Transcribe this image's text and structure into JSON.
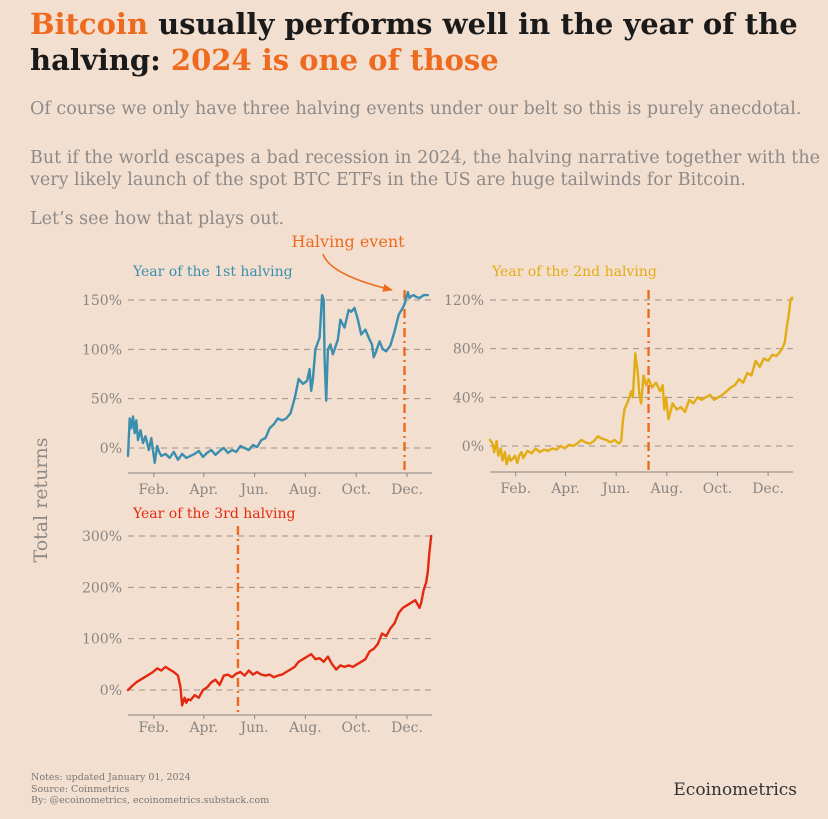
{
  "header": {
    "title_part1": "Bitcoin",
    "title_part2": " usually performs well in the year of the",
    "title_part3": "halving: ",
    "title_part4": "2024 is one of those"
  },
  "body": {
    "para1": "Of course we only have three halving events under our belt so this is purely anecdotal.",
    "para2": "But if the world escapes a bad recession in 2024, the halving narrative together with the very likely launch of the spot BTC ETFs in the US are huge tailwinds for Bitcoin.",
    "para3": "Let’s see how that plays out."
  },
  "footer": {
    "notes": "Notes: updated January 01, 2024",
    "source": "Source: Coinmetrics",
    "by": "By: @ecoinometrics, ecoinometrics.substack.com",
    "brand": "Ecoinometrics"
  },
  "colors": {
    "accent": "#ee6a1f",
    "series1": "#3b8fae",
    "series2": "#e2ac14",
    "series3": "#e32a10",
    "grid": "#9a928d"
  },
  "annotation": {
    "label": "Halving event"
  },
  "chart_data": [
    {
      "type": "line",
      "title": "Year of the 1st halving",
      "ylabel": "Total returns",
      "ylim": [
        -15,
        160
      ],
      "yticks": [
        0,
        50,
        100,
        150
      ],
      "ytick_labels": [
        "0%",
        "50%",
        "100%",
        "150%"
      ],
      "xlim": [
        0,
        365
      ],
      "xticks": [
        31,
        91,
        152,
        213,
        274,
        335
      ],
      "xtick_labels": [
        "Feb.",
        "Apr.",
        "Jun.",
        "Aug.",
        "Oct.",
        "Dec."
      ],
      "halving_day": 332,
      "x": [
        0,
        2,
        4,
        6,
        8,
        10,
        12,
        15,
        18,
        21,
        25,
        28,
        32,
        35,
        38,
        40,
        45,
        50,
        55,
        60,
        65,
        70,
        75,
        80,
        85,
        90,
        95,
        100,
        105,
        110,
        115,
        120,
        125,
        130,
        135,
        140,
        145,
        150,
        155,
        160,
        165,
        170,
        175,
        180,
        185,
        190,
        195,
        200,
        205,
        210,
        215,
        218,
        220,
        222,
        225,
        230,
        233,
        235,
        236,
        238,
        240,
        243,
        246,
        248,
        252,
        255,
        260,
        265,
        268,
        272,
        276,
        280,
        285,
        290,
        293,
        295,
        298,
        302,
        306,
        310,
        315,
        320,
        325,
        330,
        333,
        336,
        338,
        340,
        343,
        346,
        350,
        355,
        360
      ],
      "values": [
        -8,
        30,
        20,
        32,
        15,
        28,
        8,
        18,
        5,
        12,
        -2,
        10,
        -15,
        2,
        -5,
        -8,
        -6,
        -10,
        -4,
        -12,
        -6,
        -10,
        -8,
        -6,
        -3,
        -9,
        -5,
        -2,
        -7,
        -3,
        0,
        -5,
        -2,
        -4,
        2,
        0,
        -2,
        3,
        1,
        8,
        10,
        20,
        24,
        30,
        28,
        30,
        35,
        50,
        70,
        65,
        68,
        80,
        58,
        70,
        100,
        112,
        155,
        150,
        90,
        48,
        100,
        105,
        95,
        100,
        110,
        130,
        122,
        140,
        138,
        142,
        130,
        115,
        120,
        110,
        105,
        92,
        98,
        108,
        100,
        98,
        104,
        118,
        135,
        142,
        148,
        158,
        152,
        154,
        155,
        153,
        152,
        155,
        155
      ]
    },
    {
      "type": "line",
      "title": "Year of the 2nd halving",
      "ylim": [
        -10,
        125
      ],
      "yticks": [
        0,
        40,
        80,
        120
      ],
      "ytick_labels": [
        "0%",
        "40%",
        "80%",
        "120%"
      ],
      "xlim": [
        0,
        365
      ],
      "xticks": [
        31,
        91,
        152,
        213,
        274,
        335
      ],
      "xtick_labels": [
        "Feb.",
        "Apr.",
        "Jun.",
        "Aug.",
        "Oct.",
        "Dec."
      ],
      "halving_day": 191,
      "x": [
        0,
        3,
        5,
        8,
        10,
        13,
        15,
        18,
        20,
        23,
        25,
        28,
        30,
        33,
        35,
        38,
        40,
        45,
        50,
        55,
        60,
        65,
        70,
        75,
        80,
        85,
        90,
        95,
        100,
        105,
        110,
        115,
        120,
        125,
        130,
        135,
        140,
        145,
        150,
        155,
        158,
        160,
        162,
        165,
        168,
        170,
        172,
        175,
        178,
        180,
        182,
        185,
        188,
        191,
        195,
        200,
        205,
        208,
        210,
        212,
        215,
        220,
        225,
        230,
        235,
        240,
        245,
        250,
        255,
        260,
        265,
        270,
        275,
        280,
        285,
        290,
        295,
        300,
        305,
        310,
        315,
        320,
        325,
        330,
        335,
        340,
        345,
        350,
        352,
        355,
        358,
        360,
        362,
        364
      ],
      "values": [
        5,
        2,
        -5,
        4,
        -8,
        -2,
        -12,
        -5,
        -15,
        -8,
        -12,
        -10,
        -8,
        -14,
        -8,
        -5,
        -10,
        -4,
        -6,
        -2,
        -5,
        -3,
        -4,
        -2,
        -3,
        0,
        -2,
        1,
        0,
        2,
        5,
        3,
        2,
        4,
        8,
        6,
        5,
        3,
        5,
        2,
        4,
        20,
        30,
        35,
        40,
        45,
        40,
        76,
        60,
        42,
        35,
        58,
        50,
        55,
        48,
        52,
        45,
        50,
        30,
        40,
        22,
        35,
        30,
        32,
        28,
        38,
        35,
        40,
        38,
        40,
        42,
        38,
        40,
        42,
        45,
        48,
        50,
        55,
        52,
        60,
        58,
        70,
        65,
        72,
        70,
        75,
        74,
        78,
        80,
        85,
        100,
        108,
        120,
        122
      ]
    },
    {
      "type": "line",
      "title": "Year of the 3rd halving",
      "ylim": [
        -40,
        305
      ],
      "yticks": [
        0,
        100,
        200,
        300
      ],
      "ytick_labels": [
        "0%",
        "100%",
        "200%",
        "300%"
      ],
      "xlim": [
        0,
        365
      ],
      "xticks": [
        31,
        91,
        152,
        213,
        274,
        335
      ],
      "xtick_labels": [
        "Feb.",
        "Apr.",
        "Jun.",
        "Aug.",
        "Oct.",
        "Dec."
      ],
      "halving_day": 132,
      "x": [
        0,
        5,
        10,
        15,
        20,
        25,
        30,
        35,
        40,
        45,
        50,
        55,
        60,
        63,
        65,
        68,
        70,
        72,
        75,
        80,
        85,
        90,
        95,
        100,
        105,
        110,
        115,
        120,
        125,
        130,
        135,
        140,
        145,
        150,
        155,
        160,
        165,
        170,
        175,
        180,
        185,
        190,
        195,
        200,
        205,
        210,
        215,
        220,
        225,
        230,
        235,
        240,
        245,
        250,
        255,
        260,
        265,
        270,
        275,
        280,
        285,
        290,
        295,
        300,
        305,
        310,
        315,
        320,
        325,
        330,
        335,
        340,
        345,
        350,
        352,
        355,
        358,
        360,
        362,
        364
      ],
      "values": [
        0,
        8,
        15,
        20,
        25,
        30,
        35,
        42,
        38,
        45,
        40,
        35,
        28,
        5,
        -30,
        -15,
        -25,
        -18,
        -20,
        -10,
        -15,
        0,
        5,
        15,
        20,
        10,
        28,
        30,
        25,
        32,
        35,
        28,
        38,
        30,
        35,
        30,
        28,
        30,
        25,
        28,
        30,
        35,
        40,
        45,
        55,
        60,
        65,
        70,
        60,
        62,
        55,
        65,
        50,
        40,
        48,
        45,
        48,
        45,
        50,
        55,
        60,
        75,
        80,
        90,
        110,
        105,
        120,
        130,
        150,
        160,
        165,
        170,
        175,
        160,
        170,
        195,
        210,
        230,
        270,
        300
      ]
    }
  ]
}
